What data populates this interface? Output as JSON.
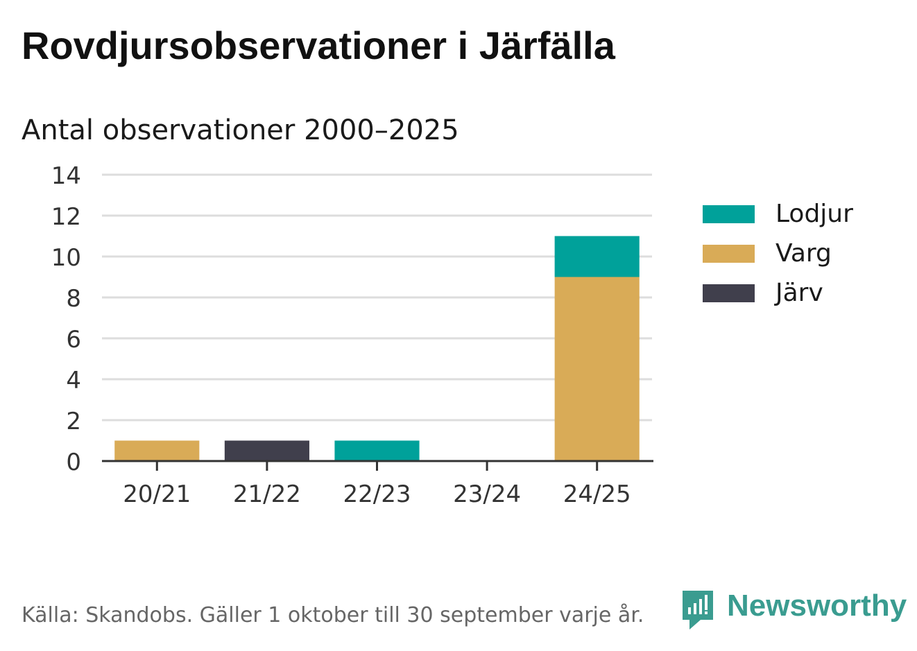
{
  "title": "Rovdjursobservationer i Järfälla",
  "subtitle": "Antal observationer 2000–2025",
  "source": "Källa: Skandobs. Gäller 1 oktober till 30 september varje år.",
  "brand": "Newsworthy",
  "colors": {
    "lodjur": "#00a19a",
    "varg": "#d9ab57",
    "jarv": "#403f4c",
    "grid": "#dddddd",
    "axis": "#333333"
  },
  "chart_data": {
    "type": "bar",
    "stacked": true,
    "title": "Rovdjursobservationer i Järfälla",
    "subtitle": "Antal observationer 2000–2025",
    "xlabel": "",
    "ylabel": "",
    "categories": [
      "20/21",
      "21/22",
      "22/23",
      "23/24",
      "24/25"
    ],
    "yticks": [
      0,
      2,
      4,
      6,
      8,
      10,
      12,
      14
    ],
    "ylim": [
      0,
      14
    ],
    "grid": true,
    "legend_position": "right",
    "series": [
      {
        "name": "Järv",
        "key": "jarv",
        "values": [
          0,
          1,
          0,
          0,
          0
        ]
      },
      {
        "name": "Varg",
        "key": "varg",
        "values": [
          1,
          0,
          0,
          0,
          9
        ]
      },
      {
        "name": "Lodjur",
        "key": "lodjur",
        "values": [
          0,
          0,
          1,
          0,
          2
        ]
      }
    ],
    "legend_order": [
      "lodjur",
      "varg",
      "jarv"
    ]
  }
}
